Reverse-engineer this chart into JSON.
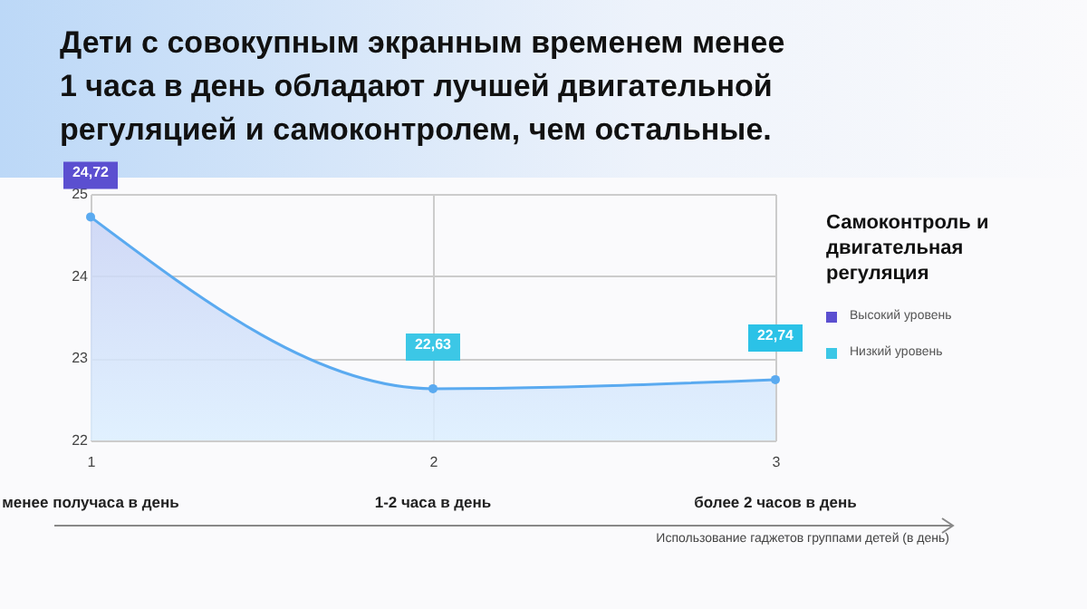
{
  "chart_data": {
    "type": "area",
    "title": "Дети с совокупным экранным временем менее 1 часа в день обладают лучшей двигательной регуляцией и самоконтролем, чем остальные.",
    "legend_title": "Самоконтроль и двигательная регуляция",
    "xlabel": "Использование гаджетов группами детей (в день)",
    "x": [
      1,
      2,
      3
    ],
    "series": [
      {
        "color": "#5aaaf0",
        "values": [
          24.72,
          22.63,
          22.74
        ]
      }
    ],
    "value_labels": [
      "24,72",
      "22,63",
      "22,74"
    ],
    "xlim": [
      1,
      3
    ],
    "xticks": [
      1,
      2,
      3
    ],
    "ylim": [
      22,
      25
    ],
    "yticks": [
      22,
      23,
      24,
      25
    ],
    "grid": true,
    "marker": "circle",
    "annotations": [
      "менее получаса в день",
      "1-2 часа в день",
      "более 2 часов в день",
      "Высокий уровень",
      "Низкий уровень"
    ]
  }
}
